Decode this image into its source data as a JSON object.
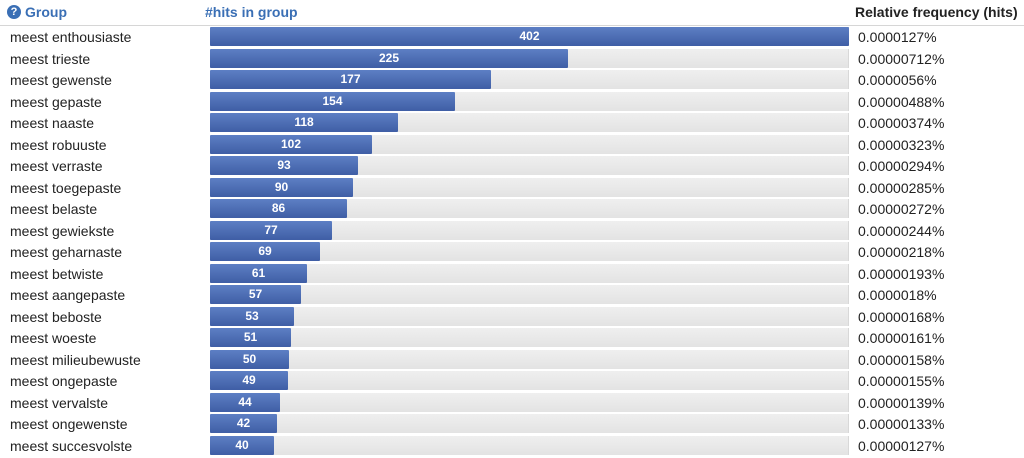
{
  "header": {
    "group_label": "Group",
    "help_glyph": "?",
    "hits_label": "#hits in group",
    "freq_label": "Relative frequency (hits)"
  },
  "colors": {
    "accent": "#3a6fb5",
    "bar": "#4a69b0",
    "track": "#e8e8e8"
  },
  "max_hits": 402,
  "rows": [
    {
      "group": "meest enthousiaste",
      "hits": 402,
      "freq": "0.0000127%"
    },
    {
      "group": "meest trieste",
      "hits": 225,
      "freq": "0.00000712%"
    },
    {
      "group": "meest gewenste",
      "hits": 177,
      "freq": "0.0000056%"
    },
    {
      "group": "meest gepaste",
      "hits": 154,
      "freq": "0.00000488%"
    },
    {
      "group": "meest naaste",
      "hits": 118,
      "freq": "0.00000374%"
    },
    {
      "group": "meest robuuste",
      "hits": 102,
      "freq": "0.00000323%"
    },
    {
      "group": "meest verraste",
      "hits": 93,
      "freq": "0.00000294%"
    },
    {
      "group": "meest toegepaste",
      "hits": 90,
      "freq": "0.00000285%"
    },
    {
      "group": "meest belaste",
      "hits": 86,
      "freq": "0.00000272%"
    },
    {
      "group": "meest gewiekste",
      "hits": 77,
      "freq": "0.00000244%"
    },
    {
      "group": "meest geharnaste",
      "hits": 69,
      "freq": "0.00000218%"
    },
    {
      "group": "meest betwiste",
      "hits": 61,
      "freq": "0.00000193%"
    },
    {
      "group": "meest aangepaste",
      "hits": 57,
      "freq": "0.0000018%"
    },
    {
      "group": "meest beboste",
      "hits": 53,
      "freq": "0.00000168%"
    },
    {
      "group": "meest woeste",
      "hits": 51,
      "freq": "0.00000161%"
    },
    {
      "group": "meest milieubewuste",
      "hits": 50,
      "freq": "0.00000158%"
    },
    {
      "group": "meest ongepaste",
      "hits": 49,
      "freq": "0.00000155%"
    },
    {
      "group": "meest vervalste",
      "hits": 44,
      "freq": "0.00000139%"
    },
    {
      "group": "meest ongewenste",
      "hits": 42,
      "freq": "0.00000133%"
    },
    {
      "group": "meest succesvolste",
      "hits": 40,
      "freq": "0.00000127%"
    }
  ]
}
